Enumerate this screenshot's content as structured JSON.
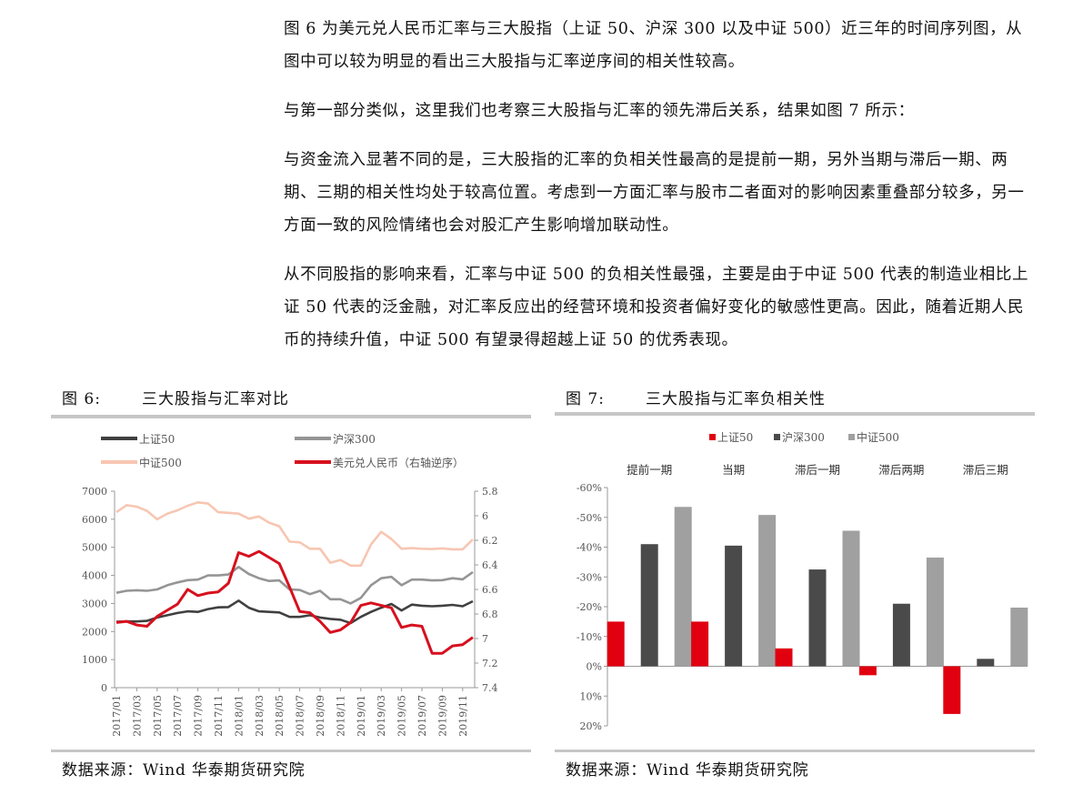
{
  "paragraphs": [
    "图 6 为美元兑人民币汇率与三大股指（上证 50、沪深 300 以及中证 500）近三年的时间序列图，从图中可以较为明显的看出三大股指与汇率逆序间的相关性较高。",
    "与第一部分类似，这里我们也考察三大股指与汇率的领先滞后关系，结果如图 7 所示：",
    "与资金流入显著不同的是，三大股指的汇率的负相关性最高的是提前一期，另外当期与滞后一期、两期、三期的相关性均处于较高位置。考虑到一方面汇率与股市二者面对的影响因素重叠部分较多，另一方面一致的风险情绪也会对股汇产生影响增加联动性。",
    "从不同股指的影响来看，汇率与中证 500 的负相关性最强，主要是由于中证 500 代表的制造业相比上证 50 代表的泛金融，对汇率反应出的经营环境和投资者偏好变化的敏感性更高。因此，随着近期人民币的持续升值，中证 500 有望录得超越上证 50 的优秀表现。"
  ],
  "fig6": {
    "number": "图 6:",
    "title": "三大股指与汇率对比",
    "source": "数据来源：Wind  华泰期货研究院"
  },
  "fig7": {
    "number": "图 7:",
    "title": "三大股指与汇率负相关性",
    "source": "数据来源：Wind  华泰期货研究院"
  },
  "chart_data": [
    {
      "type": "line",
      "x": [
        "2017/01",
        "2017/02",
        "2017/03",
        "2017/04",
        "2017/05",
        "2017/06",
        "2017/07",
        "2017/08",
        "2017/09",
        "2017/10",
        "2017/11",
        "2017/12",
        "2018/01",
        "2018/02",
        "2018/03",
        "2018/04",
        "2018/05",
        "2018/06",
        "2018/07",
        "2018/08",
        "2018/09",
        "2018/10",
        "2018/11",
        "2018/12",
        "2019/01",
        "2019/02",
        "2019/03",
        "2019/04",
        "2019/05",
        "2019/06",
        "2019/07",
        "2019/08",
        "2019/09",
        "2019/10",
        "2019/11",
        "2019/12"
      ],
      "x_tick_labels": [
        "2017/01",
        "2017/03",
        "2017/05",
        "2017/07",
        "2017/09",
        "2017/11",
        "2018/01",
        "2018/03",
        "2018/05",
        "2018/07",
        "2018/09",
        "2018/11",
        "2019/01",
        "2019/03",
        "2019/05",
        "2019/07",
        "2019/09",
        "2019/11"
      ],
      "ylim": [
        0,
        7000
      ],
      "y_ticks": [
        0,
        1000,
        2000,
        3000,
        4000,
        5000,
        6000,
        7000
      ],
      "y2lim": [
        7.4,
        5.8
      ],
      "y2_ticks": [
        "5.8",
        "6",
        "6.2",
        "6.4",
        "6.6",
        "6.8",
        "7",
        "7.2",
        "7.4"
      ],
      "y2_reversed": true,
      "legend_position": "top",
      "series": [
        {
          "name": "上证50",
          "color": "#404040",
          "axis": "left",
          "values": [
            2350,
            2360,
            2360,
            2380,
            2500,
            2580,
            2660,
            2720,
            2700,
            2800,
            2860,
            2870,
            3100,
            2850,
            2720,
            2700,
            2680,
            2520,
            2520,
            2580,
            2500,
            2450,
            2420,
            2300,
            2520,
            2700,
            2850,
            2980,
            2750,
            2960,
            2920,
            2900,
            2920,
            2950,
            2900,
            3080
          ]
        },
        {
          "name": "沪深300",
          "color": "#959595",
          "axis": "left",
          "values": [
            3380,
            3450,
            3470,
            3450,
            3500,
            3650,
            3750,
            3830,
            3850,
            4000,
            4000,
            4030,
            4300,
            4050,
            3900,
            3800,
            3820,
            3500,
            3480,
            3330,
            3450,
            3150,
            3150,
            3000,
            3200,
            3650,
            3900,
            3950,
            3650,
            3850,
            3850,
            3820,
            3830,
            3900,
            3860,
            4120
          ]
        },
        {
          "name": "中证500",
          "color": "#f7c6b2",
          "axis": "left",
          "values": [
            6250,
            6500,
            6450,
            6300,
            6000,
            6200,
            6320,
            6480,
            6600,
            6560,
            6250,
            6230,
            6200,
            6020,
            6100,
            5880,
            5750,
            5200,
            5180,
            4950,
            4950,
            4450,
            4550,
            4350,
            4350,
            5100,
            5550,
            5300,
            4950,
            4970,
            4950,
            4940,
            4960,
            4930,
            4930,
            5280
          ]
        },
        {
          "name": "美元兑人民币（右轴逆序）",
          "color": "#d7101e",
          "axis": "right",
          "values": [
            6.87,
            6.86,
            6.89,
            6.9,
            6.82,
            6.77,
            6.72,
            6.6,
            6.65,
            6.63,
            6.62,
            6.55,
            6.3,
            6.33,
            6.29,
            6.34,
            6.39,
            6.58,
            6.78,
            6.79,
            6.86,
            6.95,
            6.93,
            6.87,
            6.73,
            6.71,
            6.73,
            6.75,
            6.91,
            6.89,
            6.9,
            7.12,
            7.12,
            7.06,
            7.05,
            6.99
          ]
        }
      ]
    },
    {
      "type": "bar",
      "categories": [
        "提前一期",
        "当期",
        "滞后一期",
        "滞后两期",
        "滞后三期"
      ],
      "ylim": [
        -0.6,
        0.2
      ],
      "y_ticks": [
        "-60%",
        "-50%",
        "-40%",
        "-30%",
        "-20%",
        "-10%",
        "0%",
        "10%",
        "20%"
      ],
      "y_axis_reversed": true,
      "legend_position": "top",
      "series": [
        {
          "name": "上证50",
          "color": "#e1000f",
          "values": [
            -0.15,
            -0.15,
            -0.06,
            0.03,
            0.16
          ]
        },
        {
          "name": "沪深300",
          "color": "#4a4a4a",
          "values": [
            -0.41,
            -0.405,
            -0.325,
            -0.21,
            -0.025
          ]
        },
        {
          "name": "中证500",
          "color": "#a0a0a0",
          "values": [
            -0.535,
            -0.508,
            -0.455,
            -0.365,
            -0.197
          ]
        }
      ]
    }
  ]
}
